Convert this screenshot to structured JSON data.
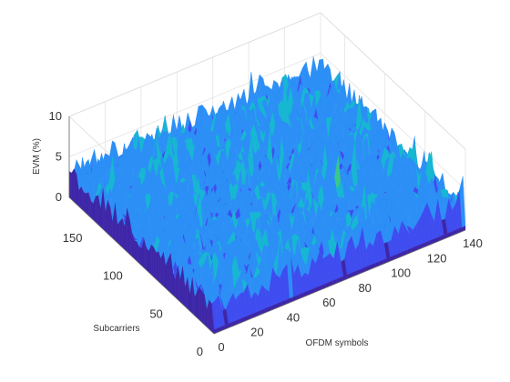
{
  "chart_data": {
    "type": "surface",
    "title": "",
    "xlabel": "OFDM symbols",
    "ylabel": "Subcarriers",
    "zlabel": "EVM (%)",
    "xlim": [
      0,
      140
    ],
    "ylim": [
      0,
      180
    ],
    "zlim": [
      0,
      10
    ],
    "x_ticks": [
      "0",
      "20",
      "40",
      "60",
      "80",
      "100",
      "120",
      "140"
    ],
    "y_ticks": [
      "0",
      "50",
      "100",
      "150"
    ],
    "z_ticks": [
      "0",
      "5",
      "10"
    ],
    "x_ticks_num": [
      0,
      20,
      40,
      60,
      80,
      100,
      120,
      140
    ],
    "y_ticks_num": [
      0,
      50,
      100,
      150
    ],
    "z_ticks_num": [
      0,
      5,
      10
    ],
    "grid": true,
    "colormap": "parula",
    "colors": [
      "#3e26a8",
      "#3e4cf0",
      "#2c8ff6",
      "#17b7d2",
      "#3ac78a"
    ],
    "typical_evm_range": [
      2,
      5
    ],
    "max_evm": 8.5,
    "edge_dip_value": 0.5
  }
}
